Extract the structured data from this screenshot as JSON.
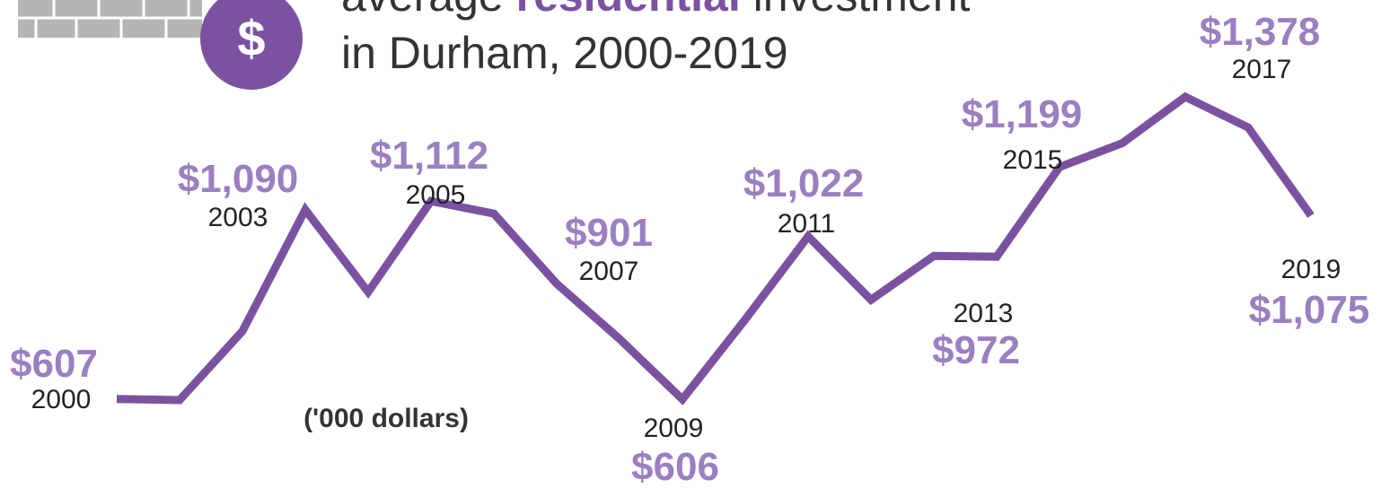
{
  "header": {
    "title_start": "average",
    "title_highlight": "residential",
    "title_end": "investment",
    "title_line2": "in Durham, 2000-2019",
    "icon_symbol": "$"
  },
  "chart_data": {
    "type": "line",
    "note": "('000 dollars)",
    "categories": [
      "2000",
      null,
      null,
      "2003",
      null,
      "2005",
      null,
      "2007",
      null,
      "2009",
      null,
      "2011",
      null,
      "2013",
      null,
      "2015",
      null,
      "2017",
      null,
      "2019"
    ],
    "values": [
      607,
      604,
      780,
      1090,
      880,
      1112,
      1080,
      901,
      760,
      606,
      810,
      1022,
      860,
      972,
      970,
      1199,
      1260,
      1378,
      1300,
      1075
    ],
    "value_labels": [
      "$607",
      null,
      null,
      "$1,090",
      null,
      "$1,112",
      null,
      "$901",
      null,
      "$606",
      null,
      "$1,022",
      null,
      "$972",
      null,
      "$1,199",
      null,
      "$1,378",
      null,
      "$1,075"
    ],
    "color": "#7b52a0",
    "label_color": "#9b7fc0"
  }
}
